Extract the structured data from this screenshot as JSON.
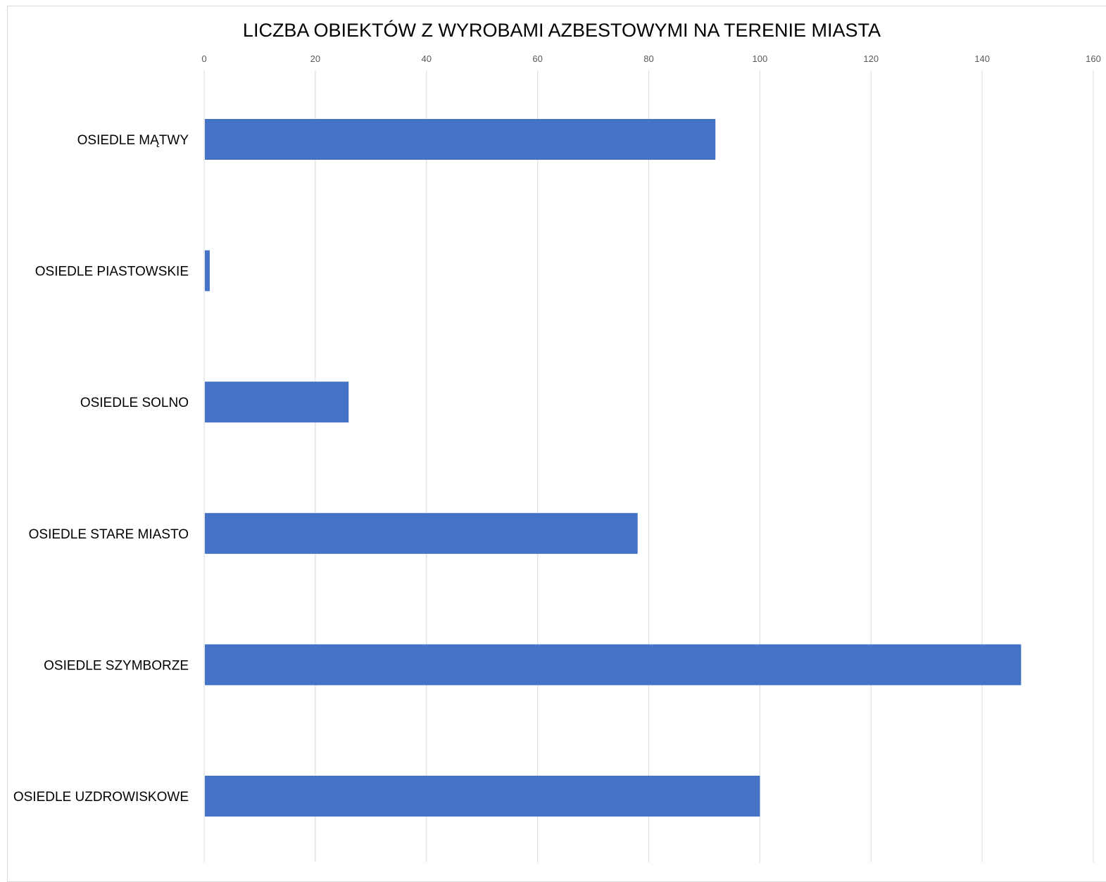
{
  "chart_data": {
    "type": "bar",
    "orientation": "horizontal",
    "title": "LICZBA OBIEKTÓW Z WYROBAMI AZBESTOWYMI NA TERENIE MIASTA",
    "categories": [
      "OSIEDLE MĄTWY",
      "OSIEDLE PIASTOWSKIE",
      "OSIEDLE SOLNO",
      "OSIEDLE STARE MIASTO",
      "OSIEDLE SZYMBORZE",
      "OSIEDLE UZDROWISKOWE"
    ],
    "values": [
      92,
      1,
      26,
      78,
      147,
      100
    ],
    "xlim": [
      0,
      160
    ],
    "xticks": [
      0,
      20,
      40,
      60,
      80,
      100,
      120,
      140,
      160
    ],
    "x_axis_position": "top",
    "grid": true,
    "legend": "none",
    "bar_color": "#4472C4"
  }
}
